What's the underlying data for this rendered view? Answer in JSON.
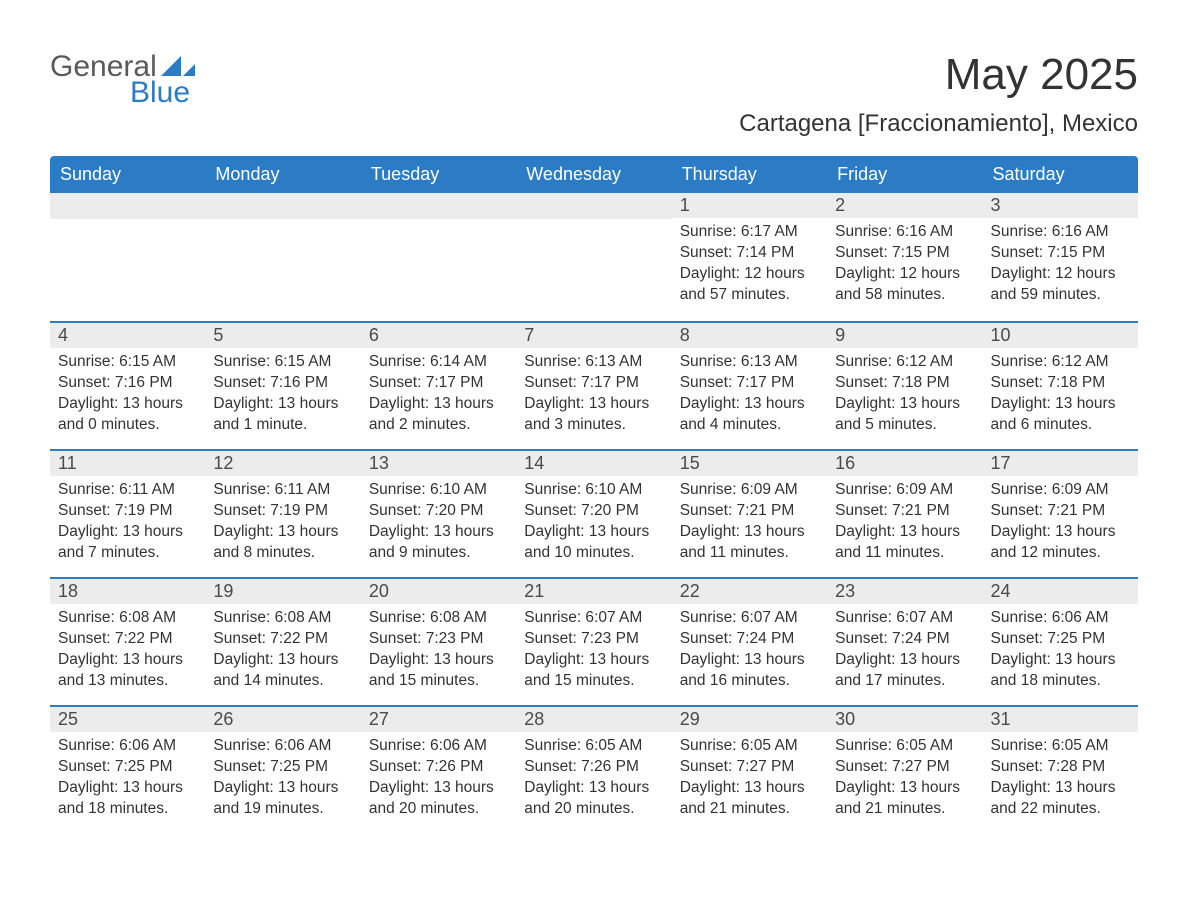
{
  "logo": {
    "text1": "General",
    "text2": "Blue",
    "accent_color": "#2b7cc4",
    "text_color": "#5a5a5a"
  },
  "title": "May 2025",
  "location": "Cartagena [Fraccionamiento], Mexico",
  "colors": {
    "header_bg": "#2b7cc4",
    "header_text": "#ffffff",
    "daynum_bg": "#ececec",
    "daynum_text": "#4a4a4a",
    "body_text": "#333333",
    "week_border": "#2b7cc4",
    "page_bg": "#ffffff"
  },
  "typography": {
    "title_fontsize": 44,
    "location_fontsize": 24,
    "header_fontsize": 18,
    "daynum_fontsize": 18,
    "body_fontsize": 15.5,
    "logo_fontsize": 30
  },
  "dayHeaders": [
    "Sunday",
    "Monday",
    "Tuesday",
    "Wednesday",
    "Thursday",
    "Friday",
    "Saturday"
  ],
  "weeks": [
    [
      {
        "num": "",
        "sunrise": "",
        "sunset": "",
        "daylight": ""
      },
      {
        "num": "",
        "sunrise": "",
        "sunset": "",
        "daylight": ""
      },
      {
        "num": "",
        "sunrise": "",
        "sunset": "",
        "daylight": ""
      },
      {
        "num": "",
        "sunrise": "",
        "sunset": "",
        "daylight": ""
      },
      {
        "num": "1",
        "sunrise": "Sunrise: 6:17 AM",
        "sunset": "Sunset: 7:14 PM",
        "daylight": "Daylight: 12 hours and 57 minutes."
      },
      {
        "num": "2",
        "sunrise": "Sunrise: 6:16 AM",
        "sunset": "Sunset: 7:15 PM",
        "daylight": "Daylight: 12 hours and 58 minutes."
      },
      {
        "num": "3",
        "sunrise": "Sunrise: 6:16 AM",
        "sunset": "Sunset: 7:15 PM",
        "daylight": "Daylight: 12 hours and 59 minutes."
      }
    ],
    [
      {
        "num": "4",
        "sunrise": "Sunrise: 6:15 AM",
        "sunset": "Sunset: 7:16 PM",
        "daylight": "Daylight: 13 hours and 0 minutes."
      },
      {
        "num": "5",
        "sunrise": "Sunrise: 6:15 AM",
        "sunset": "Sunset: 7:16 PM",
        "daylight": "Daylight: 13 hours and 1 minute."
      },
      {
        "num": "6",
        "sunrise": "Sunrise: 6:14 AM",
        "sunset": "Sunset: 7:17 PM",
        "daylight": "Daylight: 13 hours and 2 minutes."
      },
      {
        "num": "7",
        "sunrise": "Sunrise: 6:13 AM",
        "sunset": "Sunset: 7:17 PM",
        "daylight": "Daylight: 13 hours and 3 minutes."
      },
      {
        "num": "8",
        "sunrise": "Sunrise: 6:13 AM",
        "sunset": "Sunset: 7:17 PM",
        "daylight": "Daylight: 13 hours and 4 minutes."
      },
      {
        "num": "9",
        "sunrise": "Sunrise: 6:12 AM",
        "sunset": "Sunset: 7:18 PM",
        "daylight": "Daylight: 13 hours and 5 minutes."
      },
      {
        "num": "10",
        "sunrise": "Sunrise: 6:12 AM",
        "sunset": "Sunset: 7:18 PM",
        "daylight": "Daylight: 13 hours and 6 minutes."
      }
    ],
    [
      {
        "num": "11",
        "sunrise": "Sunrise: 6:11 AM",
        "sunset": "Sunset: 7:19 PM",
        "daylight": "Daylight: 13 hours and 7 minutes."
      },
      {
        "num": "12",
        "sunrise": "Sunrise: 6:11 AM",
        "sunset": "Sunset: 7:19 PM",
        "daylight": "Daylight: 13 hours and 8 minutes."
      },
      {
        "num": "13",
        "sunrise": "Sunrise: 6:10 AM",
        "sunset": "Sunset: 7:20 PM",
        "daylight": "Daylight: 13 hours and 9 minutes."
      },
      {
        "num": "14",
        "sunrise": "Sunrise: 6:10 AM",
        "sunset": "Sunset: 7:20 PM",
        "daylight": "Daylight: 13 hours and 10 minutes."
      },
      {
        "num": "15",
        "sunrise": "Sunrise: 6:09 AM",
        "sunset": "Sunset: 7:21 PM",
        "daylight": "Daylight: 13 hours and 11 minutes."
      },
      {
        "num": "16",
        "sunrise": "Sunrise: 6:09 AM",
        "sunset": "Sunset: 7:21 PM",
        "daylight": "Daylight: 13 hours and 11 minutes."
      },
      {
        "num": "17",
        "sunrise": "Sunrise: 6:09 AM",
        "sunset": "Sunset: 7:21 PM",
        "daylight": "Daylight: 13 hours and 12 minutes."
      }
    ],
    [
      {
        "num": "18",
        "sunrise": "Sunrise: 6:08 AM",
        "sunset": "Sunset: 7:22 PM",
        "daylight": "Daylight: 13 hours and 13 minutes."
      },
      {
        "num": "19",
        "sunrise": "Sunrise: 6:08 AM",
        "sunset": "Sunset: 7:22 PM",
        "daylight": "Daylight: 13 hours and 14 minutes."
      },
      {
        "num": "20",
        "sunrise": "Sunrise: 6:08 AM",
        "sunset": "Sunset: 7:23 PM",
        "daylight": "Daylight: 13 hours and 15 minutes."
      },
      {
        "num": "21",
        "sunrise": "Sunrise: 6:07 AM",
        "sunset": "Sunset: 7:23 PM",
        "daylight": "Daylight: 13 hours and 15 minutes."
      },
      {
        "num": "22",
        "sunrise": "Sunrise: 6:07 AM",
        "sunset": "Sunset: 7:24 PM",
        "daylight": "Daylight: 13 hours and 16 minutes."
      },
      {
        "num": "23",
        "sunrise": "Sunrise: 6:07 AM",
        "sunset": "Sunset: 7:24 PM",
        "daylight": "Daylight: 13 hours and 17 minutes."
      },
      {
        "num": "24",
        "sunrise": "Sunrise: 6:06 AM",
        "sunset": "Sunset: 7:25 PM",
        "daylight": "Daylight: 13 hours and 18 minutes."
      }
    ],
    [
      {
        "num": "25",
        "sunrise": "Sunrise: 6:06 AM",
        "sunset": "Sunset: 7:25 PM",
        "daylight": "Daylight: 13 hours and 18 minutes."
      },
      {
        "num": "26",
        "sunrise": "Sunrise: 6:06 AM",
        "sunset": "Sunset: 7:25 PM",
        "daylight": "Daylight: 13 hours and 19 minutes."
      },
      {
        "num": "27",
        "sunrise": "Sunrise: 6:06 AM",
        "sunset": "Sunset: 7:26 PM",
        "daylight": "Daylight: 13 hours and 20 minutes."
      },
      {
        "num": "28",
        "sunrise": "Sunrise: 6:05 AM",
        "sunset": "Sunset: 7:26 PM",
        "daylight": "Daylight: 13 hours and 20 minutes."
      },
      {
        "num": "29",
        "sunrise": "Sunrise: 6:05 AM",
        "sunset": "Sunset: 7:27 PM",
        "daylight": "Daylight: 13 hours and 21 minutes."
      },
      {
        "num": "30",
        "sunrise": "Sunrise: 6:05 AM",
        "sunset": "Sunset: 7:27 PM",
        "daylight": "Daylight: 13 hours and 21 minutes."
      },
      {
        "num": "31",
        "sunrise": "Sunrise: 6:05 AM",
        "sunset": "Sunset: 7:28 PM",
        "daylight": "Daylight: 13 hours and 22 minutes."
      }
    ]
  ]
}
